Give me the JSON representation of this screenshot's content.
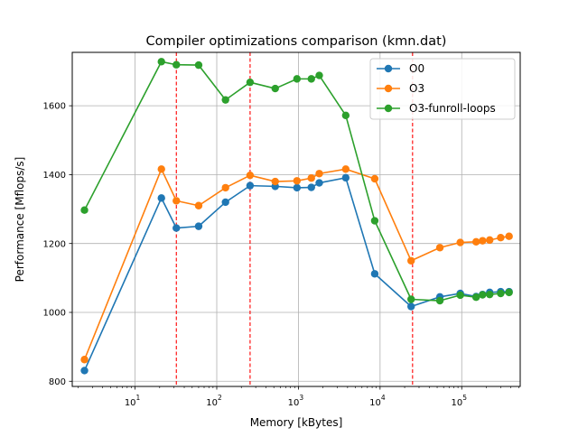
{
  "chart_data": {
    "type": "line",
    "title": "Compiler optimizations comparison (kmn.dat)",
    "xlabel": "Memory [kBytes]",
    "ylabel": "Performance [Mflops/s]",
    "xscale": "log",
    "xlim": [
      1.7,
      520000
    ],
    "ylim": [
      785,
      1755
    ],
    "grid": true,
    "legend_position": "top-right",
    "x_ticks": [
      {
        "value": 10,
        "base": "10",
        "exp": "1"
      },
      {
        "value": 100,
        "base": "10",
        "exp": "2"
      },
      {
        "value": 1000,
        "base": "10",
        "exp": "3"
      },
      {
        "value": 10000,
        "base": "10",
        "exp": "4"
      },
      {
        "value": 100000,
        "base": "10",
        "exp": "5"
      }
    ],
    "y_ticks": [
      {
        "value": 800,
        "label": "800"
      },
      {
        "value": 1000,
        "label": "1000"
      },
      {
        "value": 1200,
        "label": "1200"
      },
      {
        "value": 1400,
        "label": "1400"
      },
      {
        "value": 1600,
        "label": "1600"
      }
    ],
    "vlines": [
      32,
      256,
      25000
    ],
    "vline_color": "#ff0000",
    "x": [
      2.4,
      21,
      32,
      60,
      128,
      256,
      520,
      960,
      1440,
      1800,
      3800,
      8600,
      24000,
      54000,
      96000,
      150000,
      180000,
      220000,
      300000,
      380000
    ],
    "series": [
      {
        "name": "O0",
        "color": "#1f77b4",
        "values": [
          831,
          1332,
          1245,
          1250,
          1320,
          1368,
          1366,
          1362,
          1363,
          1376,
          1391,
          1112,
          1017,
          1045,
          1055,
          1046,
          1052,
          1058,
          1060,
          1060
        ]
      },
      {
        "name": "O3",
        "color": "#ff7f0e",
        "values": [
          863,
          1416,
          1324,
          1310,
          1362,
          1398,
          1380,
          1382,
          1390,
          1403,
          1416,
          1388,
          1150,
          1188,
          1203,
          1205,
          1208,
          1210,
          1217,
          1221
        ]
      },
      {
        "name": "O3-funroll-loops",
        "color": "#2ca02c",
        "values": [
          1297,
          1728,
          1719,
          1718,
          1617,
          1668,
          1650,
          1678,
          1678,
          1688,
          1572,
          1266,
          1038,
          1034,
          1050,
          1044,
          1051,
          1052,
          1055,
          1058
        ]
      }
    ]
  }
}
